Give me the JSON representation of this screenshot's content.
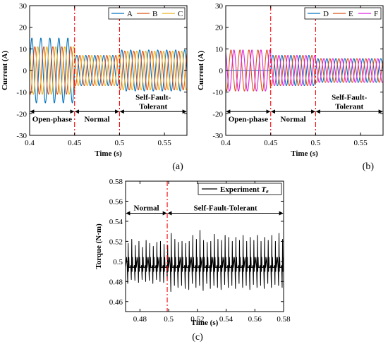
{
  "figure": {
    "captions": [
      "(a)",
      "(b)",
      "(c)"
    ]
  },
  "chart_data": [
    {
      "type": "line",
      "panel": "(a)",
      "xlabel": "Time (s)",
      "ylabel": "Current (A)",
      "xlim": [
        0.4,
        0.575
      ],
      "ylim": [
        -30,
        30
      ],
      "xticks": [
        0.4,
        0.45,
        0.5,
        0.55
      ],
      "xtick_labels": [
        "0.4",
        "0.45",
        "0.5",
        "0.55"
      ],
      "yticks": [
        -30,
        -20,
        -10,
        0,
        10,
        20,
        30
      ],
      "ytick_labels": [
        "-30",
        "-20",
        "-10",
        "0",
        "10",
        "20",
        "30"
      ],
      "grid": false,
      "legend": "top-right",
      "legend_layout": "horizontal",
      "frequency_hz": 100,
      "boundaries": [
        0.45,
        0.5
      ],
      "regions": [
        {
          "label": "Open-phase",
          "from": 0.4,
          "to": 0.45
        },
        {
          "label": "Normal",
          "from": 0.45,
          "to": 0.5
        },
        {
          "label": "Self-Fault-\nTolerant",
          "from": 0.5,
          "to": 0.575
        }
      ],
      "region_arrow_y": -19,
      "series": [
        {
          "name": "A",
          "color": "#0072BD",
          "phase_deg": 0,
          "segments": [
            {
              "from": 0.4,
              "to": 0.45,
              "amplitude": 15
            },
            {
              "from": 0.45,
              "to": 0.5,
              "amplitude": 7
            },
            {
              "from": 0.5,
              "to": 0.575,
              "amplitude": 9.5
            }
          ]
        },
        {
          "name": "B",
          "color": "#D95319",
          "phase_deg": 240,
          "segments": [
            {
              "from": 0.4,
              "to": 0.45,
              "amplitude": 11
            },
            {
              "from": 0.45,
              "to": 0.5,
              "amplitude": 7
            },
            {
              "from": 0.5,
              "to": 0.575,
              "amplitude": 9
            }
          ]
        },
        {
          "name": "C",
          "color": "#EDB120",
          "phase_deg": 120,
          "segments": [
            {
              "from": 0.4,
              "to": 0.45,
              "amplitude": 11
            },
            {
              "from": 0.45,
              "to": 0.5,
              "amplitude": 7
            },
            {
              "from": 0.5,
              "to": 0.575,
              "amplitude": 9
            }
          ]
        }
      ]
    },
    {
      "type": "line",
      "panel": "(b)",
      "xlabel": "Time (s)",
      "ylabel": "Current (A)",
      "xlim": [
        0.4,
        0.575
      ],
      "ylim": [
        -30,
        30
      ],
      "xticks": [
        0.4,
        0.45,
        0.5,
        0.55
      ],
      "xtick_labels": [
        "0.4",
        "0.45",
        "0.5",
        "0.55"
      ],
      "yticks": [
        -30,
        -20,
        -10,
        0,
        10,
        20,
        30
      ],
      "ytick_labels": [
        "-30",
        "-20",
        "-10",
        "0",
        "10",
        "20",
        "30"
      ],
      "grid": false,
      "legend": "top-right",
      "legend_layout": "horizontal",
      "frequency_hz": 100,
      "boundaries": [
        0.45,
        0.5
      ],
      "regions": [
        {
          "label": "Open-phase",
          "from": 0.4,
          "to": 0.45
        },
        {
          "label": "Normal",
          "from": 0.45,
          "to": 0.5
        },
        {
          "label": "Self-Fault-\nTolerant",
          "from": 0.5,
          "to": 0.575
        }
      ],
      "region_arrow_y": -19,
      "series": [
        {
          "name": "D",
          "color": "#0072BD",
          "phase_deg": 0,
          "segments": [
            {
              "from": 0.4,
              "to": 0.45,
              "amplitude": 0
            },
            {
              "from": 0.45,
              "to": 0.5,
              "amplitude": 7
            },
            {
              "from": 0.5,
              "to": 0.575,
              "amplitude": 5.5
            }
          ]
        },
        {
          "name": "E",
          "color": "#D95319",
          "phase_deg": 240,
          "segments": [
            {
              "from": 0.4,
              "to": 0.45,
              "amplitude": 9.5
            },
            {
              "from": 0.45,
              "to": 0.5,
              "amplitude": 7
            },
            {
              "from": 0.5,
              "to": 0.575,
              "amplitude": 5.5
            }
          ]
        },
        {
          "name": "F",
          "color": "#E020E0",
          "phase_deg": 120,
          "segments": [
            {
              "from": 0.4,
              "to": 0.45,
              "amplitude": 9.5
            },
            {
              "from": 0.45,
              "to": 0.5,
              "amplitude": 7
            },
            {
              "from": 0.5,
              "to": 0.575,
              "amplitude": 5.5
            }
          ]
        }
      ]
    },
    {
      "type": "line",
      "panel": "(c)",
      "xlabel": "Time (s)",
      "ylabel": "Torque (N·m)",
      "xlim": [
        0.47,
        0.58
      ],
      "ylim": [
        0.45,
        0.58
      ],
      "xticks": [
        0.48,
        0.5,
        0.52,
        0.54,
        0.56,
        0.58
      ],
      "xtick_labels": [
        "0.48",
        "0.5",
        "0.52",
        "0.54",
        "0.56",
        "0.58"
      ],
      "yticks": [
        0.46,
        0.48,
        0.5,
        0.52,
        0.54,
        0.56,
        0.58
      ],
      "ytick_labels": [
        "0.46",
        "0.48",
        "0.5",
        "0.52",
        "0.54",
        "0.56",
        "0.58"
      ],
      "grid": false,
      "legend": "top-right",
      "legend_text": "Experiment",
      "legend_symbol": "Te",
      "boundaries": [
        0.499
      ],
      "regions": [
        {
          "label": "Normal",
          "from": 0.47,
          "to": 0.499
        },
        {
          "label": "Self-Fault-Tolerant",
          "from": 0.499,
          "to": 0.58
        }
      ],
      "region_arrow_y": 0.548,
      "series": [
        {
          "name": "Te",
          "color": "#000000",
          "mean": 0.498,
          "spike_period_s": 0.0025,
          "peaks": [
            0.518,
            0.522,
            0.516,
            0.52,
            0.514,
            0.521,
            0.518,
            0.515,
            0.519,
            0.52,
            0.517,
            0.516,
            0.528,
            0.522,
            0.519,
            0.52,
            0.518,
            0.52,
            0.526,
            0.522,
            0.531,
            0.521,
            0.519,
            0.52,
            0.527,
            0.522,
            0.521,
            0.526,
            0.524,
            0.52,
            0.524,
            0.521,
            0.526,
            0.52,
            0.524,
            0.521,
            0.526,
            0.52,
            0.524,
            0.521,
            0.526,
            0.52,
            0.528,
            0.522
          ],
          "troughs": [
            0.478,
            0.482,
            0.481,
            0.479,
            0.482,
            0.48,
            0.481,
            0.478,
            0.482,
            0.48,
            0.479,
            0.481,
            0.47,
            0.476,
            0.474,
            0.476,
            0.473,
            0.472,
            0.478,
            0.474,
            0.476,
            0.471,
            0.478,
            0.473,
            0.476,
            0.474,
            0.472,
            0.477,
            0.474,
            0.476,
            0.473,
            0.478,
            0.474,
            0.476,
            0.472,
            0.477,
            0.474,
            0.476,
            0.473,
            0.478,
            0.474,
            0.477,
            0.476,
            0.474
          ]
        }
      ]
    }
  ]
}
